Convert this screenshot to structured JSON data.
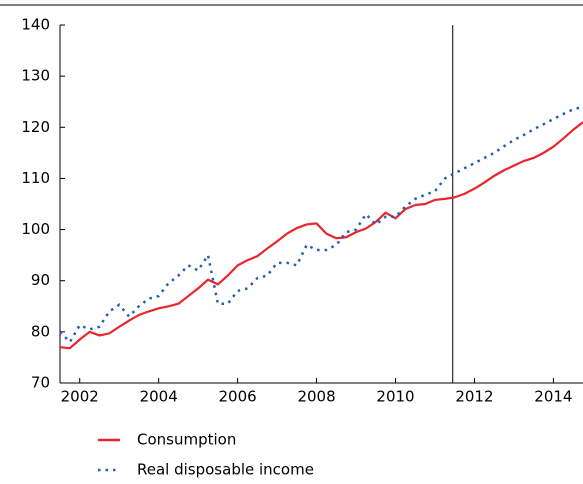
{
  "chart_data": {
    "type": "line",
    "x": [
      2001.5,
      2001.75,
      2002,
      2002.25,
      2002.5,
      2002.75,
      2003,
      2003.25,
      2003.5,
      2003.75,
      2004,
      2004.25,
      2004.5,
      2004.75,
      2005,
      2005.25,
      2005.5,
      2005.75,
      2006,
      2006.25,
      2006.5,
      2006.75,
      2007,
      2007.25,
      2007.5,
      2007.75,
      2008,
      2008.25,
      2008.5,
      2008.75,
      2009,
      2009.25,
      2009.5,
      2009.75,
      2010,
      2010.25,
      2010.5,
      2010.75,
      2011,
      2011.25,
      2011.5,
      2011.75,
      2012,
      2012.25,
      2012.5,
      2012.75,
      2013,
      2013.25,
      2013.5,
      2013.75,
      2014,
      2014.25,
      2014.5,
      2014.75
    ],
    "series": [
      {
        "name": "Consumption",
        "color": "#e8262b",
        "dash": "solid",
        "values": [
          77,
          76.8,
          78.5,
          80,
          79.3,
          79.7,
          81,
          82.2,
          83.3,
          84,
          84.6,
          85,
          85.5,
          87,
          88.5,
          90.2,
          89.3,
          91,
          93,
          94,
          94.8,
          96.3,
          97.7,
          99.2,
          100.3,
          101,
          101.2,
          99.2,
          98.3,
          98.5,
          99.5,
          100.2,
          101.5,
          103.3,
          102.2,
          104,
          104.8,
          105,
          105.8,
          106,
          106.3,
          107,
          108,
          109.2,
          110.5,
          111.6,
          112.5,
          113.4,
          114,
          115,
          116.2,
          117.8,
          119.5,
          121
        ]
      },
      {
        "name": "Real disposable income",
        "color": "#1f5fad",
        "dash": "dotted",
        "values": [
          80,
          78,
          81.3,
          80.5,
          81,
          84,
          85.3,
          83,
          85,
          86.5,
          87,
          89.5,
          91,
          93,
          92,
          95,
          85.5,
          85.5,
          88,
          88.5,
          90.5,
          91,
          93.5,
          93.5,
          93,
          97,
          96,
          96,
          97,
          99.5,
          100,
          103,
          101,
          102.5,
          102.5,
          104.5,
          106,
          106.8,
          107.5,
          110,
          111,
          112,
          113,
          114,
          115,
          116.3,
          117.5,
          118.5,
          119.6,
          120.6,
          121.6,
          122.6,
          123.5,
          124
        ]
      }
    ],
    "xlim": [
      2001.5,
      2014.75
    ],
    "xticks": [
      2002,
      2004,
      2006,
      2008,
      2010,
      2012,
      2014
    ],
    "ylim": [
      70,
      140
    ],
    "yticks": [
      70,
      80,
      90,
      100,
      110,
      120,
      130,
      140
    ],
    "vline": 2011.45,
    "grid": false
  }
}
